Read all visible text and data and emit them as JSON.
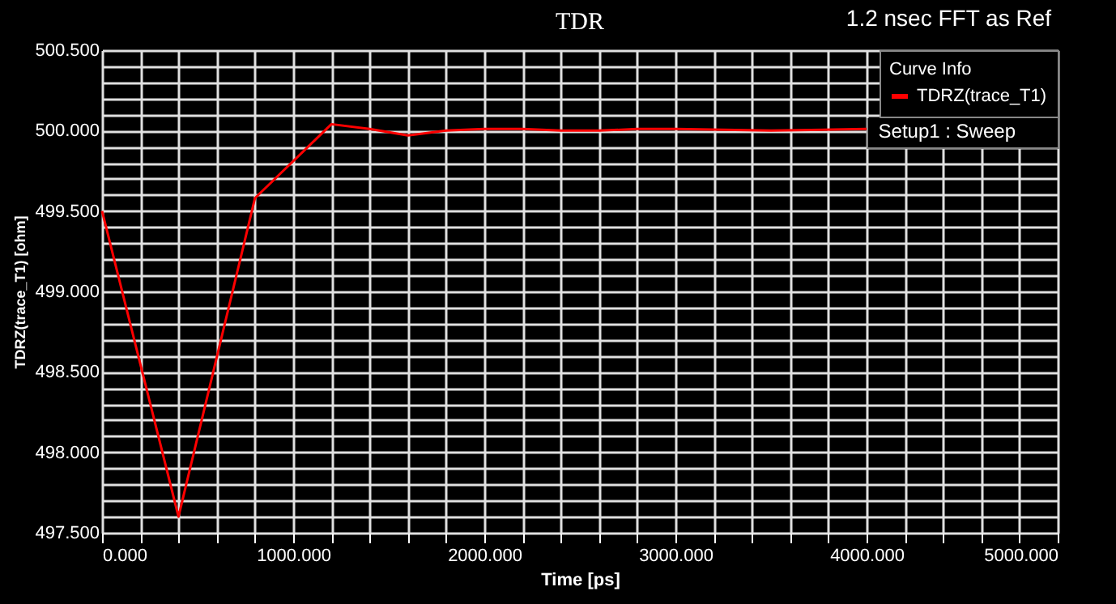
{
  "chart_data": {
    "type": "line",
    "title": "TDR",
    "xlabel": "Time [ps]",
    "ylabel": "TDRZ(trace_T1) [ohm]",
    "legend_title": "Curve Info",
    "annotations": [
      "1.2 nsec FFT as Ref",
      "Setup1 : Sweep"
    ],
    "x": [
      0,
      400,
      800,
      1200,
      1400,
      1600,
      1800,
      2000,
      2200,
      2400,
      2600,
      2800,
      3000,
      3500,
      4000
    ],
    "series": [
      {
        "name": "TDRZ(trace_T1)",
        "color": "#ff0000",
        "values": [
          499.5,
          497.6,
          499.58,
          500.04,
          500.01,
          499.97,
          500.0,
          500.01,
          500.01,
          500.0,
          500.0,
          500.01,
          500.01,
          500.0,
          500.01
        ]
      }
    ],
    "xlim": [
      0,
      5000
    ],
    "ylim": [
      497.5,
      500.5
    ],
    "xticks": [
      {
        "value": 0,
        "label": "0.000"
      },
      {
        "value": 200,
        "label": null
      },
      {
        "value": 400,
        "label": null
      },
      {
        "value": 600,
        "label": null
      },
      {
        "value": 800,
        "label": null
      },
      {
        "value": 1000,
        "label": "1000.000"
      },
      {
        "value": 1200,
        "label": null
      },
      {
        "value": 1400,
        "label": null
      },
      {
        "value": 1600,
        "label": null
      },
      {
        "value": 1800,
        "label": null
      },
      {
        "value": 2000,
        "label": "2000.000"
      },
      {
        "value": 2200,
        "label": null
      },
      {
        "value": 2400,
        "label": null
      },
      {
        "value": 2600,
        "label": null
      },
      {
        "value": 2800,
        "label": null
      },
      {
        "value": 3000,
        "label": "3000.000"
      },
      {
        "value": 3200,
        "label": null
      },
      {
        "value": 3400,
        "label": null
      },
      {
        "value": 3600,
        "label": null
      },
      {
        "value": 3800,
        "label": null
      },
      {
        "value": 4000,
        "label": "4000.000"
      },
      {
        "value": 4200,
        "label": null
      },
      {
        "value": 4400,
        "label": null
      },
      {
        "value": 4600,
        "label": null
      },
      {
        "value": 4800,
        "label": null
      },
      {
        "value": 5000,
        "label": "5000.000"
      }
    ],
    "yticks": [
      {
        "value": 497.5,
        "label": "497.500"
      },
      {
        "value": 497.6,
        "label": null
      },
      {
        "value": 497.7,
        "label": null
      },
      {
        "value": 497.8,
        "label": null
      },
      {
        "value": 497.9,
        "label": null
      },
      {
        "value": 498,
        "label": "498.000"
      },
      {
        "value": 498.1,
        "label": null
      },
      {
        "value": 498.2,
        "label": null
      },
      {
        "value": 498.3,
        "label": null
      },
      {
        "value": 498.4,
        "label": null
      },
      {
        "value": 498.5,
        "label": "498.500"
      },
      {
        "value": 498.6,
        "label": null
      },
      {
        "value": 498.7,
        "label": null
      },
      {
        "value": 498.8,
        "label": null
      },
      {
        "value": 498.9,
        "label": null
      },
      {
        "value": 499,
        "label": "499.000"
      },
      {
        "value": 499.1,
        "label": null
      },
      {
        "value": 499.2,
        "label": null
      },
      {
        "value": 499.3,
        "label": null
      },
      {
        "value": 499.4,
        "label": null
      },
      {
        "value": 499.5,
        "label": "499.500"
      },
      {
        "value": 499.6,
        "label": null
      },
      {
        "value": 499.7,
        "label": null
      },
      {
        "value": 499.8,
        "label": null
      },
      {
        "value": 499.9,
        "label": null
      },
      {
        "value": 500,
        "label": "500.000"
      },
      {
        "value": 500.1,
        "label": null
      },
      {
        "value": 500.2,
        "label": null
      },
      {
        "value": 500.3,
        "label": null
      },
      {
        "value": 500.4,
        "label": null
      },
      {
        "value": 500.5,
        "label": "500.500"
      }
    ],
    "grid": true,
    "legend": "top right",
    "marker": "none",
    "line_style": "solid"
  }
}
